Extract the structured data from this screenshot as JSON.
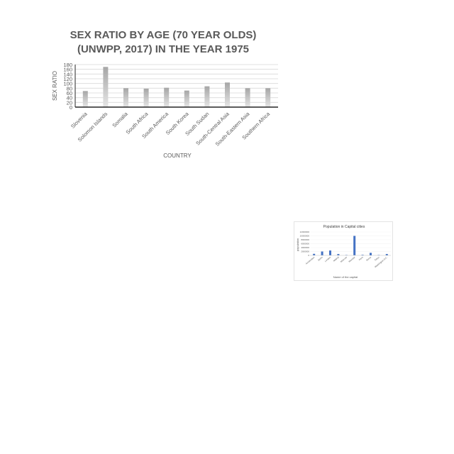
{
  "chart_data": [
    {
      "type": "bar",
      "title": [
        "SEX RATIO BY AGE (70 YEAR OLDS)",
        "(UNWPP, 2017) IN THE YEAR 1975"
      ],
      "xlabel": "COUNTRY",
      "ylabel": "SEX RATIO",
      "ylim": [
        0,
        180
      ],
      "yticks": [
        0,
        20,
        40,
        60,
        80,
        100,
        120,
        140,
        160,
        180
      ],
      "grid": true,
      "categories": [
        "Slovenia",
        "Solomon Islands",
        "Somalia",
        "South Africa",
        "South America",
        "South Korea",
        "South Sudan",
        "South-Central Asia",
        "South-Eastern Asia",
        "Southern Africa"
      ],
      "values": [
        68,
        170,
        80,
        78,
        82,
        70,
        88,
        104,
        80,
        80
      ],
      "bar_color": "#a6a6a6"
    },
    {
      "type": "bar",
      "title": "Population in Capital cities",
      "xlabel": "Name of the capital",
      "ylabel": "population",
      "ylim": [
        0,
        12000000
      ],
      "yticks_labels": [
        "0",
        "2000000",
        "4000000",
        "6000000",
        "8000000",
        "10000000",
        "12000000"
      ],
      "grid": true,
      "categories": [
        "Amsterdam",
        "Berlin",
        "London",
        "Madrid",
        "Moscow",
        "Mumbai",
        "Paris",
        "Rome",
        "Tokyo",
        "Washington D.C."
      ],
      "values": [
        800000,
        2000000,
        2500000,
        700000,
        200000,
        10000000,
        300000,
        1300000,
        200000,
        700000
      ],
      "bar_color": "#4472c4"
    }
  ]
}
